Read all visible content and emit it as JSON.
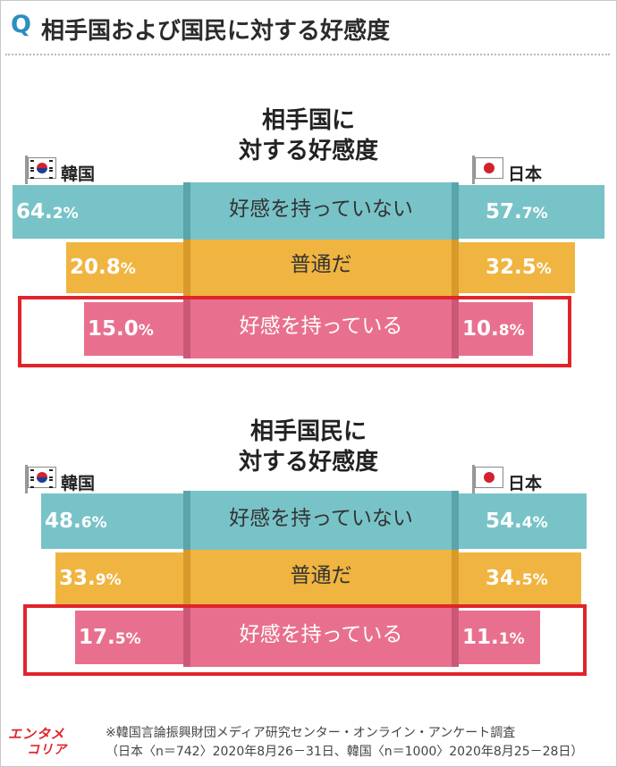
{
  "title_q": "Q",
  "title": "相手国および国民に対する好感度",
  "colors": {
    "teal": "#78c3c8",
    "yellow": "#f0b440",
    "pink": "#e8708e",
    "highlight": "#e0242a"
  },
  "countries": {
    "left": "韓国",
    "right": "日本"
  },
  "chart_data": [
    {
      "type": "table",
      "title_line1": "相手国に",
      "title_line2": "対する好感度",
      "categories": [
        "好感を持っていない",
        "普通だ",
        "好感を持っている"
      ],
      "series": [
        {
          "name": "韓国",
          "values": [
            64.2,
            20.8,
            15.0
          ],
          "labels_int": [
            "64.",
            "20.8",
            "15.0"
          ],
          "labels_dec": [
            "2%",
            "%",
            "%"
          ]
        },
        {
          "name": "日本",
          "values": [
            57.7,
            32.5,
            10.8
          ],
          "labels_int": [
            "57.",
            "32.5",
            "10."
          ],
          "labels_dec": [
            "7%",
            "%",
            "8%"
          ]
        }
      ],
      "highlighted_category": "好感を持っている"
    },
    {
      "type": "table",
      "title_line1": "相手国民に",
      "title_line2": "対する好感度",
      "categories": [
        "好感を持っていない",
        "普通だ",
        "好感を持っている"
      ],
      "series": [
        {
          "name": "韓国",
          "values": [
            48.6,
            33.9,
            17.5
          ],
          "labels_int": [
            "48.",
            "33.",
            "17."
          ],
          "labels_dec": [
            "6%",
            "9%",
            "5%"
          ]
        },
        {
          "name": "日本",
          "values": [
            54.4,
            34.5,
            11.1
          ],
          "labels_int": [
            "54.",
            "34.",
            "11."
          ],
          "labels_dec": [
            "4%",
            "5%",
            "1%"
          ]
        }
      ],
      "highlighted_category": "好感を持っている"
    }
  ],
  "footer": {
    "logo_top": "エンタメ",
    "logo_bottom": "コリア",
    "note_line1": "※韓国言論振興財団メディア研究センター・オンライン・アンケート調査",
    "note_line2": "（日本〈n＝742〉2020年8月26－31日、韓国〈n＝1000〉2020年8月25－28日）"
  }
}
